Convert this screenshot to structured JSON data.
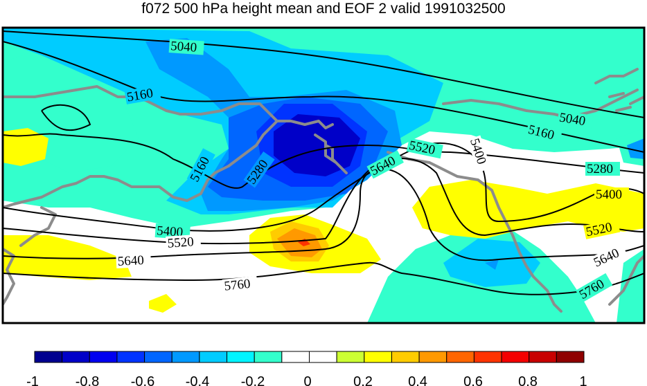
{
  "title": "f072 500 hPa height mean and EOF 2 valid 1991032500",
  "contour_labels": [
    "5040",
    "5040",
    "5160",
    "5160",
    "5160",
    "5280",
    "5280",
    "5400",
    "5400",
    "5400",
    "5520",
    "5520",
    "5520",
    "5640",
    "5640",
    "5640",
    "5760",
    "5760"
  ],
  "colorbar": {
    "tick_labels": [
      "-1",
      "-0.8",
      "-0.6",
      "-0.4",
      "-0.2",
      "0",
      "0.2",
      "0.4",
      "0.6",
      "0.8",
      "1"
    ],
    "colors": [
      "#00008f",
      "#0000c8",
      "#0000f0",
      "#0033ff",
      "#0066ff",
      "#0099ff",
      "#00ccff",
      "#00f4ff",
      "#33ffcc",
      "#ffffff",
      "#ffffff",
      "#ccff33",
      "#ffff00",
      "#ffcc00",
      "#ff9900",
      "#ff6600",
      "#ff3300",
      "#f40000",
      "#c80000",
      "#8f0000"
    ]
  },
  "colors": {
    "ocean": "#ffffff",
    "coast": "#8c8c8c",
    "contour": "#000000",
    "frame": "#000000"
  }
}
